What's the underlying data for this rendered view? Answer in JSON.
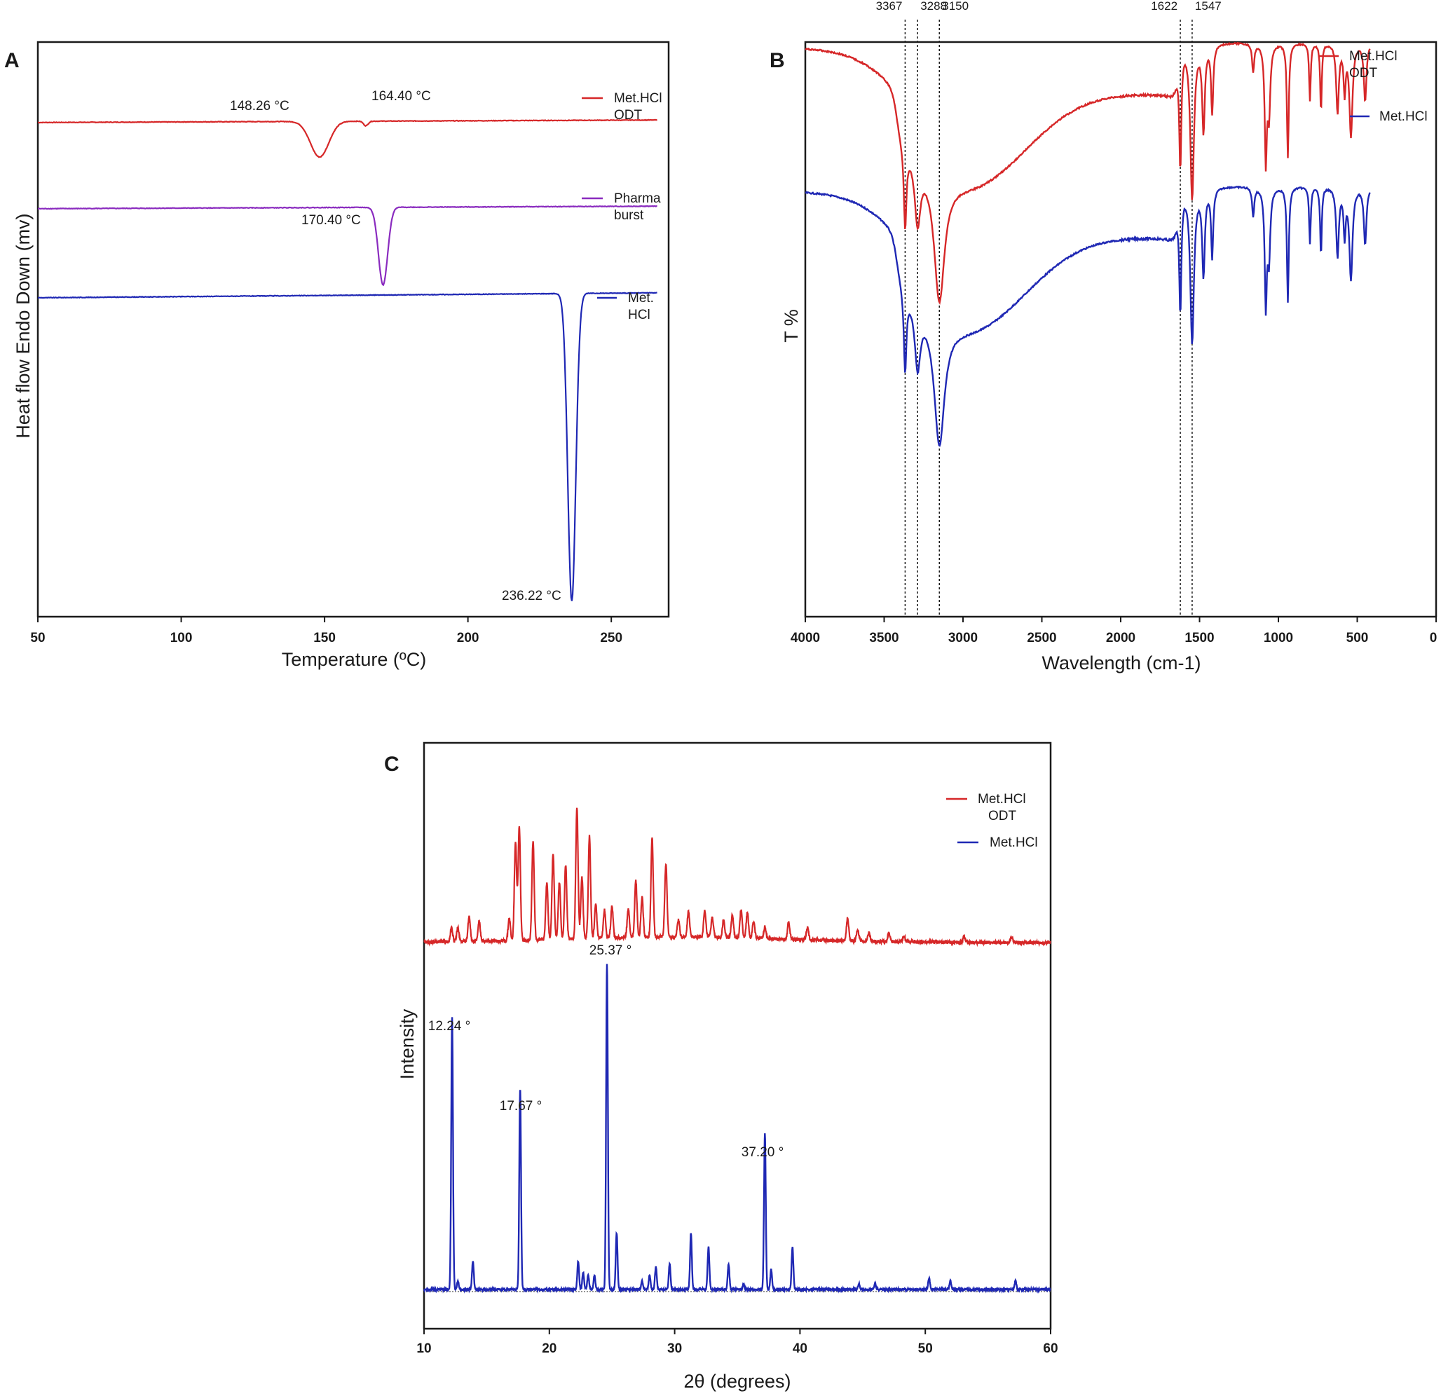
{
  "colors": {
    "red": "#d62728",
    "purple": "#8a2bbf",
    "blue": "#1f28b4",
    "axis": "#1a1a1a"
  },
  "chart_data": [
    {
      "panel": "A",
      "type": "line",
      "xlabel": "Temperature (ºC)",
      "ylabel": "Heat flow Endo Down (mv)",
      "xlim": [
        50,
        270
      ],
      "xticks": [
        50,
        100,
        150,
        200,
        250
      ],
      "series": [
        {
          "name": "Met.HCl ODT",
          "color": "#d62728",
          "baseline": 0.86,
          "peaks": [
            {
              "x": 148.26,
              "depth": 0.062,
              "width": 3.2
            },
            {
              "x": 164.4,
              "depth": 0.008,
              "width": 0.8
            }
          ]
        },
        {
          "name": "Pharma burst",
          "color": "#8a2bbf",
          "baseline": 0.71,
          "peaks": [
            {
              "x": 170.4,
              "depth": 0.135,
              "width": 1.6
            }
          ]
        },
        {
          "name": "Met. HCl",
          "color": "#1f28b4",
          "baseline": 0.555,
          "peaks": [
            {
              "x": 236.22,
              "depth": 0.535,
              "width": 1.4
            }
          ]
        }
      ],
      "annotations": [
        "148.26 °C",
        "164.40 °C",
        "170.40 °C",
        "236.22 °C"
      ],
      "legend": [
        {
          "line1": "Met.HCl",
          "line2": "ODT"
        },
        {
          "line1": "Pharma",
          "line2": "burst"
        },
        {
          "line1": "Met.",
          "line2": "HCl"
        }
      ]
    },
    {
      "panel": "B",
      "type": "line",
      "xlabel": "Wavelength (cm-1)",
      "ylabel": "T %",
      "xlim": [
        4000,
        0
      ],
      "xticks": [
        4000,
        3500,
        3000,
        2500,
        2000,
        1500,
        1000,
        500,
        0
      ],
      "reference_lines": [
        3367,
        3288,
        3150,
        1622,
        1547
      ],
      "series": [
        {
          "name": "Met.HCl ODT",
          "color": "#d62728",
          "offset": 0
        },
        {
          "name": "Met.HCl",
          "color": "#1f28b4",
          "offset": 0.25
        }
      ],
      "legend": [
        {
          "line1": "Met.HCl",
          "line2": "ODT"
        },
        {
          "line1": "Met.HCl",
          "line2": ""
        }
      ],
      "peaks": [
        {
          "x": 3367,
          "d": 0.14,
          "w": 10
        },
        {
          "x": 3288,
          "d": 0.11,
          "w": 22
        },
        {
          "x": 3150,
          "d": 0.22,
          "w": 40
        },
        {
          "x": 1622,
          "d": 0.2,
          "w": 8
        },
        {
          "x": 1547,
          "d": 0.27,
          "w": 14
        },
        {
          "x": 1475,
          "d": 0.15,
          "w": 10
        },
        {
          "x": 1420,
          "d": 0.12,
          "w": 8
        },
        {
          "x": 1160,
          "d": 0.05,
          "w": 8
        },
        {
          "x": 1080,
          "d": 0.2,
          "w": 8
        },
        {
          "x": 1060,
          "d": 0.12,
          "w": 10
        },
        {
          "x": 940,
          "d": 0.2,
          "w": 7
        },
        {
          "x": 800,
          "d": 0.1,
          "w": 6
        },
        {
          "x": 730,
          "d": 0.12,
          "w": 6
        },
        {
          "x": 625,
          "d": 0.12,
          "w": 10
        },
        {
          "x": 580,
          "d": 0.08,
          "w": 8
        },
        {
          "x": 540,
          "d": 0.16,
          "w": 12
        },
        {
          "x": 450,
          "d": 0.1,
          "w": 10
        }
      ]
    },
    {
      "panel": "C",
      "type": "line",
      "xlabel": "2θ (degrees)",
      "ylabel": "Intensity",
      "xlim": [
        10,
        60
      ],
      "xticks": [
        10,
        20,
        30,
        40,
        50,
        60
      ],
      "series": [
        {
          "name": "Met.HCl ODT",
          "color": "#d62728"
        },
        {
          "name": "Met.HCl",
          "color": "#1f28b4"
        }
      ],
      "legend": [
        {
          "line1": "Met.HCl",
          "line2": "ODT"
        },
        {
          "line1": "Met.HCl",
          "line2": ""
        }
      ],
      "annotations": [
        {
          "x": 12.24,
          "label": "12.24 °"
        },
        {
          "x": 17.67,
          "label": "17.67 °"
        },
        {
          "x": 25.37,
          "label": "25.37 °"
        },
        {
          "x": 37.2,
          "label": "37.20 °"
        }
      ],
      "blue_peaks": [
        {
          "x": 12.24,
          "h": 0.96
        },
        {
          "x": 12.7,
          "h": 0.03
        },
        {
          "x": 13.9,
          "h": 0.1
        },
        {
          "x": 17.67,
          "h": 0.71
        },
        {
          "x": 22.3,
          "h": 0.1
        },
        {
          "x": 22.7,
          "h": 0.06
        },
        {
          "x": 23.1,
          "h": 0.05
        },
        {
          "x": 23.6,
          "h": 0.05
        },
        {
          "x": 24.6,
          "h": 1.15
        },
        {
          "x": 25.37,
          "h": 0.2
        },
        {
          "x": 27.4,
          "h": 0.03
        },
        {
          "x": 28.0,
          "h": 0.05
        },
        {
          "x": 28.5,
          "h": 0.08
        },
        {
          "x": 29.6,
          "h": 0.09
        },
        {
          "x": 31.3,
          "h": 0.2
        },
        {
          "x": 32.7,
          "h": 0.15
        },
        {
          "x": 34.3,
          "h": 0.09
        },
        {
          "x": 35.5,
          "h": 0.02
        },
        {
          "x": 37.2,
          "h": 0.55
        },
        {
          "x": 37.7,
          "h": 0.07
        },
        {
          "x": 39.4,
          "h": 0.15
        },
        {
          "x": 44.7,
          "h": 0.02
        },
        {
          "x": 46.0,
          "h": 0.02
        },
        {
          "x": 50.3,
          "h": 0.04
        },
        {
          "x": 52.0,
          "h": 0.03
        },
        {
          "x": 57.2,
          "h": 0.03
        }
      ],
      "red_peaks": [
        {
          "x": 12.2,
          "h": 0.05
        },
        {
          "x": 12.7,
          "h": 0.05
        },
        {
          "x": 13.6,
          "h": 0.09
        },
        {
          "x": 14.4,
          "h": 0.07
        },
        {
          "x": 16.8,
          "h": 0.08
        },
        {
          "x": 17.3,
          "h": 0.35
        },
        {
          "x": 17.6,
          "h": 0.4
        },
        {
          "x": 18.7,
          "h": 0.35
        },
        {
          "x": 19.8,
          "h": 0.2
        },
        {
          "x": 20.3,
          "h": 0.3
        },
        {
          "x": 20.8,
          "h": 0.2
        },
        {
          "x": 21.3,
          "h": 0.26
        },
        {
          "x": 22.2,
          "h": 0.46
        },
        {
          "x": 22.6,
          "h": 0.22
        },
        {
          "x": 23.2,
          "h": 0.36
        },
        {
          "x": 23.7,
          "h": 0.12
        },
        {
          "x": 24.4,
          "h": 0.1
        },
        {
          "x": 25.0,
          "h": 0.11
        },
        {
          "x": 26.3,
          "h": 0.1
        },
        {
          "x": 26.9,
          "h": 0.2
        },
        {
          "x": 27.4,
          "h": 0.14
        },
        {
          "x": 28.2,
          "h": 0.35
        },
        {
          "x": 29.3,
          "h": 0.26
        },
        {
          "x": 30.3,
          "h": 0.06
        },
        {
          "x": 31.1,
          "h": 0.09
        },
        {
          "x": 32.4,
          "h": 0.09
        },
        {
          "x": 33.0,
          "h": 0.07
        },
        {
          "x": 33.9,
          "h": 0.06
        },
        {
          "x": 34.6,
          "h": 0.08
        },
        {
          "x": 35.3,
          "h": 0.1
        },
        {
          "x": 35.8,
          "h": 0.09
        },
        {
          "x": 36.3,
          "h": 0.06
        },
        {
          "x": 37.2,
          "h": 0.04
        },
        {
          "x": 39.1,
          "h": 0.06
        },
        {
          "x": 40.6,
          "h": 0.04
        },
        {
          "x": 43.8,
          "h": 0.08
        },
        {
          "x": 44.6,
          "h": 0.04
        },
        {
          "x": 45.5,
          "h": 0.03
        },
        {
          "x": 47.1,
          "h": 0.03
        },
        {
          "x": 48.3,
          "h": 0.02
        },
        {
          "x": 53.1,
          "h": 0.02
        },
        {
          "x": 56.9,
          "h": 0.02
        }
      ]
    }
  ]
}
